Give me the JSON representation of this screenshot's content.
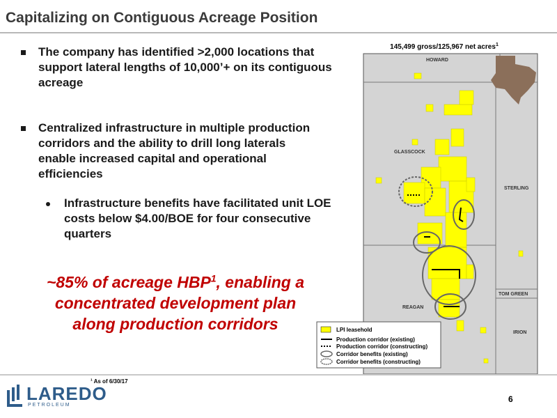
{
  "header": {
    "title": "Capitalizing on Contiguous Acreage Position"
  },
  "bullets": [
    {
      "text": "The company has identified >2,000 locations that support lateral lengths of 10,000’+ on its contiguous acreage"
    },
    {
      "text": "Centralized infrastructure in multiple production corridors and the ability to drill long laterals enable increased capital and operational efficiencies",
      "sub": [
        "Infrastructure benefits have facilitated unit LOE costs below $4.00/BOE for four consecutive quarters"
      ]
    }
  ],
  "callout": {
    "before": "~85% of acreage HBP",
    "sup": "1",
    "after": ", enabling a concentrated development plan along production corridors"
  },
  "map": {
    "caption": "145,499 gross/125,967 net acres",
    "caption_sup": "1",
    "counties": [
      "HOWARD",
      "GLASSCOCK",
      "STERLING",
      "REAGAN",
      "TOM GREEN",
      "IRION"
    ],
    "legend": [
      "LPI leasehold",
      "Production corridor (existing)",
      "Production corridor (constructing)",
      "Corridor benefits (existing)",
      "Corridor benefits (constructing)"
    ]
  },
  "footnote": {
    "sup": "1",
    "text": "As of 6/30/17"
  },
  "logo": {
    "name": "LAREDO",
    "sub": "PETROLEUM"
  },
  "page_number": 6
}
